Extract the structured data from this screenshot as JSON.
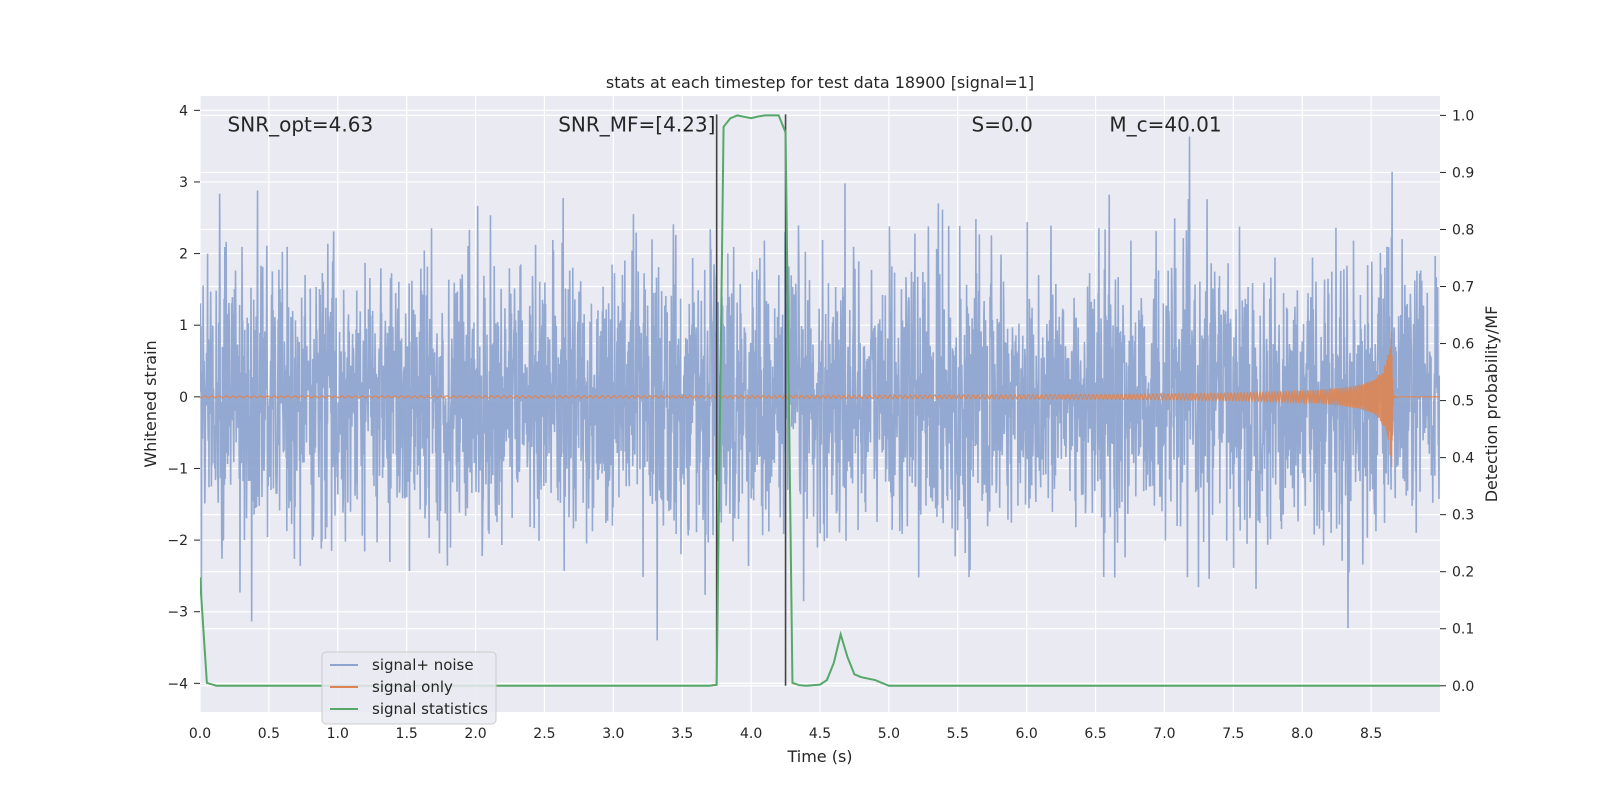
{
  "chart_data": {
    "type": "line",
    "title": "stats at each timestep for test data 18900 [signal=1]",
    "xlabel": "Time (s)",
    "ylabel": "Whitened strain",
    "ylabel_right": "Detection probability/MF",
    "xlim": [
      0.0,
      9.0
    ],
    "ylim": [
      -4.4,
      4.2
    ],
    "ylim_right": [
      -0.046,
      1.034
    ],
    "xticks": [
      "0.0",
      "0.5",
      "1.0",
      "1.5",
      "2.0",
      "2.5",
      "3.0",
      "3.5",
      "4.0",
      "4.5",
      "5.0",
      "5.5",
      "6.0",
      "6.5",
      "7.0",
      "7.5",
      "8.0",
      "8.5"
    ],
    "yticks": [
      "4",
      "3",
      "2",
      "1",
      "0",
      "−1",
      "−2",
      "−3",
      "−4"
    ],
    "yticks_right": [
      "1.0",
      "0.9",
      "0.8",
      "0.7",
      "0.6",
      "0.5",
      "0.4",
      "0.3",
      "0.2",
      "0.1",
      "0.0"
    ],
    "grid": true,
    "legend_position": "lower-left",
    "annotations": [
      {
        "text": "SNR_opt=4.63",
        "x": 0.2,
        "y": 3.8
      },
      {
        "text": "SNR_MF=[4.23]",
        "x": 2.6,
        "y": 3.8
      },
      {
        "text": "S=0.0",
        "x": 5.6,
        "y": 3.8
      },
      {
        "text": "M_c=40.01",
        "x": 6.6,
        "y": 3.8
      }
    ],
    "vlines": [
      3.75,
      4.25
    ],
    "series": [
      {
        "name": "signal+ noise",
        "color": "#8fa5cf",
        "description": "whitened noise filling approx -2 to 2, spikes to about ±3.8",
        "envelope_min": -3.4,
        "envelope_max": 3.85
      },
      {
        "name": "signal only",
        "color": "#dd8452",
        "description": "chirp growing to peak near t=8.65",
        "chirp_peak_time": 8.65,
        "chirp_peak_amplitude": 1.15
      },
      {
        "name": "signal statistics",
        "color": "#55a868",
        "axis": "right",
        "x": [
          0.0,
          0.05,
          0.12,
          1.0,
          2.0,
          3.0,
          3.5,
          3.7,
          3.75,
          3.8,
          3.85,
          3.9,
          4.0,
          4.05,
          4.1,
          4.2,
          4.25,
          4.3,
          4.35,
          4.4,
          4.5,
          4.55,
          4.6,
          4.65,
          4.7,
          4.75,
          4.8,
          4.9,
          4.95,
          5.0,
          5.5,
          6.0,
          7.0,
          8.0,
          9.0
        ],
        "values": [
          0.19,
          0.005,
          0.0,
          0.0,
          0.0,
          0.0,
          0.0,
          0.0,
          0.002,
          0.98,
          0.995,
          1.0,
          0.995,
          0.998,
          1.0,
          1.0,
          0.97,
          0.005,
          0.001,
          0.0,
          0.002,
          0.01,
          0.04,
          0.09,
          0.05,
          0.02,
          0.015,
          0.01,
          0.005,
          0.0,
          0.0,
          0.0,
          0.0,
          0.0,
          0.0
        ]
      }
    ]
  }
}
